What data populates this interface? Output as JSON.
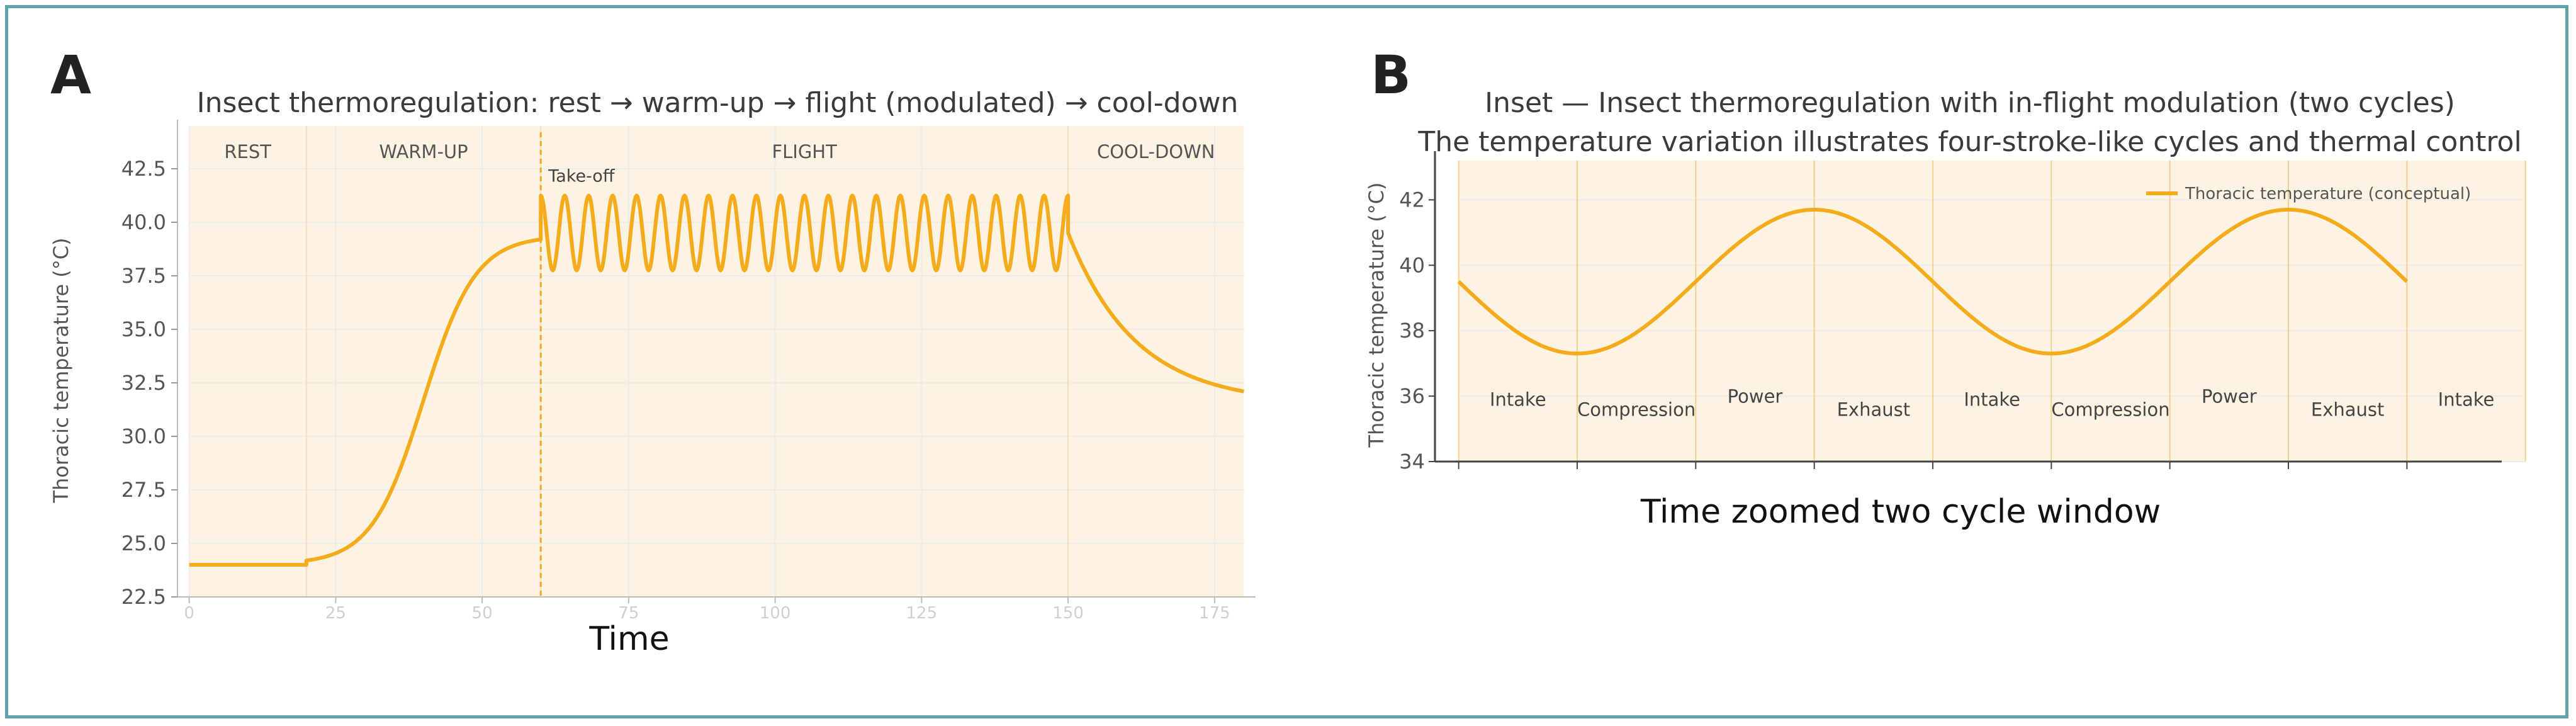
{
  "chart_data": [
    {
      "panel": "A",
      "type": "line",
      "title": "Insect thermoregulation: rest → warm-up → flight (modulated) → cool-down",
      "xlabel": "Time",
      "ylabel": "Thoracic temperature (°C)",
      "xlim": [
        -2,
        182
      ],
      "ylim": [
        22.5,
        44.5
      ],
      "yticks": [
        22.5,
        25.0,
        27.5,
        30.0,
        32.5,
        35.0,
        37.5,
        40.0,
        42.5
      ],
      "ytick_labels": [
        "22.5",
        "25.0",
        "27.5",
        "30.0",
        "32.5",
        "35.0",
        "37.5",
        "40.0",
        "42.5"
      ],
      "xticks": [
        0,
        25,
        50,
        75,
        100,
        125,
        150,
        175
      ],
      "xtick_labels": [
        "0",
        "25",
        "50",
        "75",
        "100",
        "125",
        "150",
        "175"
      ],
      "phases": [
        {
          "label": "REST",
          "start": 0,
          "end": 20
        },
        {
          "label": "WARM-UP",
          "start": 20,
          "end": 60
        },
        {
          "label": "FLIGHT",
          "start": 60,
          "end": 150
        },
        {
          "label": "COOL-DOWN",
          "start": 150,
          "end": 180
        }
      ],
      "annotation": {
        "label": "Take-off",
        "x": 60
      },
      "series": [
        {
          "name": "Thoracic temperature",
          "segments": [
            {
              "kind": "rest",
              "x": [
                0,
                20
              ],
              "y": 24.0
            },
            {
              "kind": "warmup",
              "x": [
                20,
                60
              ],
              "y_start": 24.2,
              "y_end": 39.2
            },
            {
              "kind": "flight",
              "x": [
                60,
                150
              ],
              "mean": 39.5,
              "amplitude": 1.75,
              "cycles": 22
            },
            {
              "kind": "cooldown",
              "x": [
                150,
                180
              ],
              "y_start": 39.5,
              "y_end": 32.1
            }
          ]
        }
      ]
    },
    {
      "panel": "B",
      "type": "line",
      "title": "Inset — Insect thermoregulation with in-flight modulation (two cycles)",
      "subtitle": "The temperature variation illustrates four-stroke-like cycles and thermal control",
      "xlabel": "Time zoomed two cycle window",
      "ylabel": "Thoracic temperature (°C)",
      "xlim": [
        -0.2,
        8.8
      ],
      "ylim": [
        34,
        43.2
      ],
      "yticks": [
        34,
        36,
        38,
        40,
        42
      ],
      "ytick_labels": [
        "34",
        "36",
        "38",
        "40",
        "42"
      ],
      "xticks": [
        0,
        1,
        2,
        3,
        4,
        5,
        6,
        7,
        8
      ],
      "stroke_boundaries": [
        0,
        1,
        2,
        3,
        4,
        5,
        6,
        7,
        8,
        9
      ],
      "stroke_labels": [
        {
          "label": "Intake",
          "x": 0.5,
          "y": 35.7
        },
        {
          "label": "Compression",
          "x": 1.5,
          "y": 35.4
        },
        {
          "label": "Power",
          "x": 2.5,
          "y": 35.8
        },
        {
          "label": "Exhaust",
          "x": 3.5,
          "y": 35.4
        },
        {
          "label": "Intake",
          "x": 4.5,
          "y": 35.7
        },
        {
          "label": "Compression",
          "x": 5.5,
          "y": 35.4
        },
        {
          "label": "Power",
          "x": 6.5,
          "y": 35.8
        },
        {
          "label": "Exhaust",
          "x": 7.5,
          "y": 35.4
        },
        {
          "label": "Intake",
          "x": 8.5,
          "y": 35.7
        }
      ],
      "legend": {
        "label": "Thoracic temperature (conceptual)",
        "placement": "top-right"
      },
      "series": [
        {
          "name": "Thoracic temperature (conceptual)",
          "x_range": [
            0,
            8
          ],
          "mean": 39.5,
          "amplitude": 2.2,
          "period": 4,
          "phase_start": "descending"
        }
      ]
    }
  ]
}
